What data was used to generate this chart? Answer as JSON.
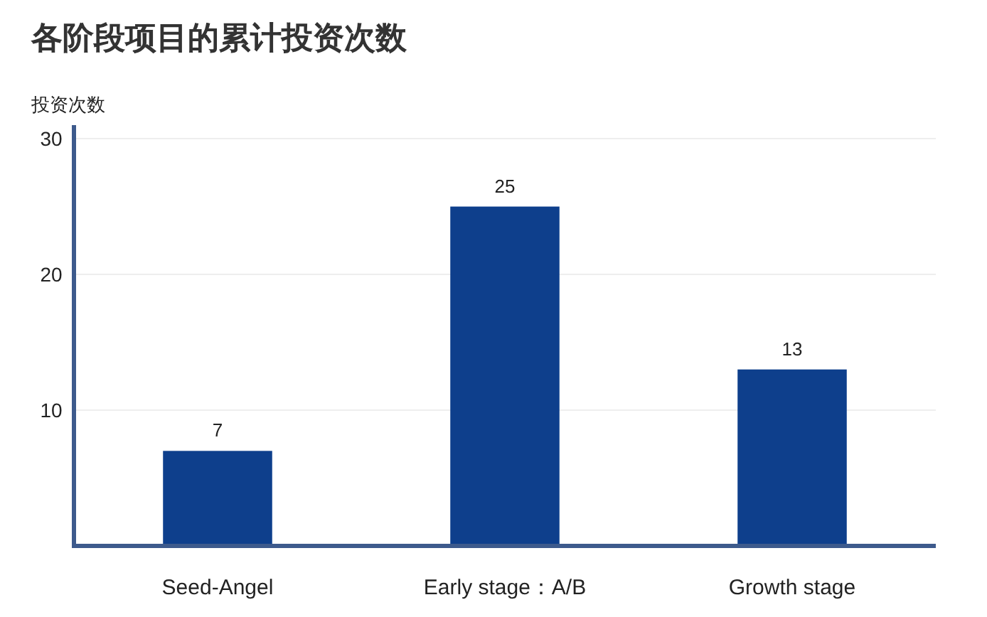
{
  "chart_data": {
    "type": "bar",
    "title": "各阶段项目的累计投资次数",
    "ylabel": "投资次数",
    "categories": [
      "Seed-Angel",
      "Early stage：A/B",
      "Growth stage"
    ],
    "values": [
      7,
      25,
      13
    ],
    "color": "#0e3f8c",
    "ylim": [
      0,
      31
    ],
    "yticks": [
      10,
      20,
      30
    ],
    "grid": "y",
    "data_labels": true
  }
}
